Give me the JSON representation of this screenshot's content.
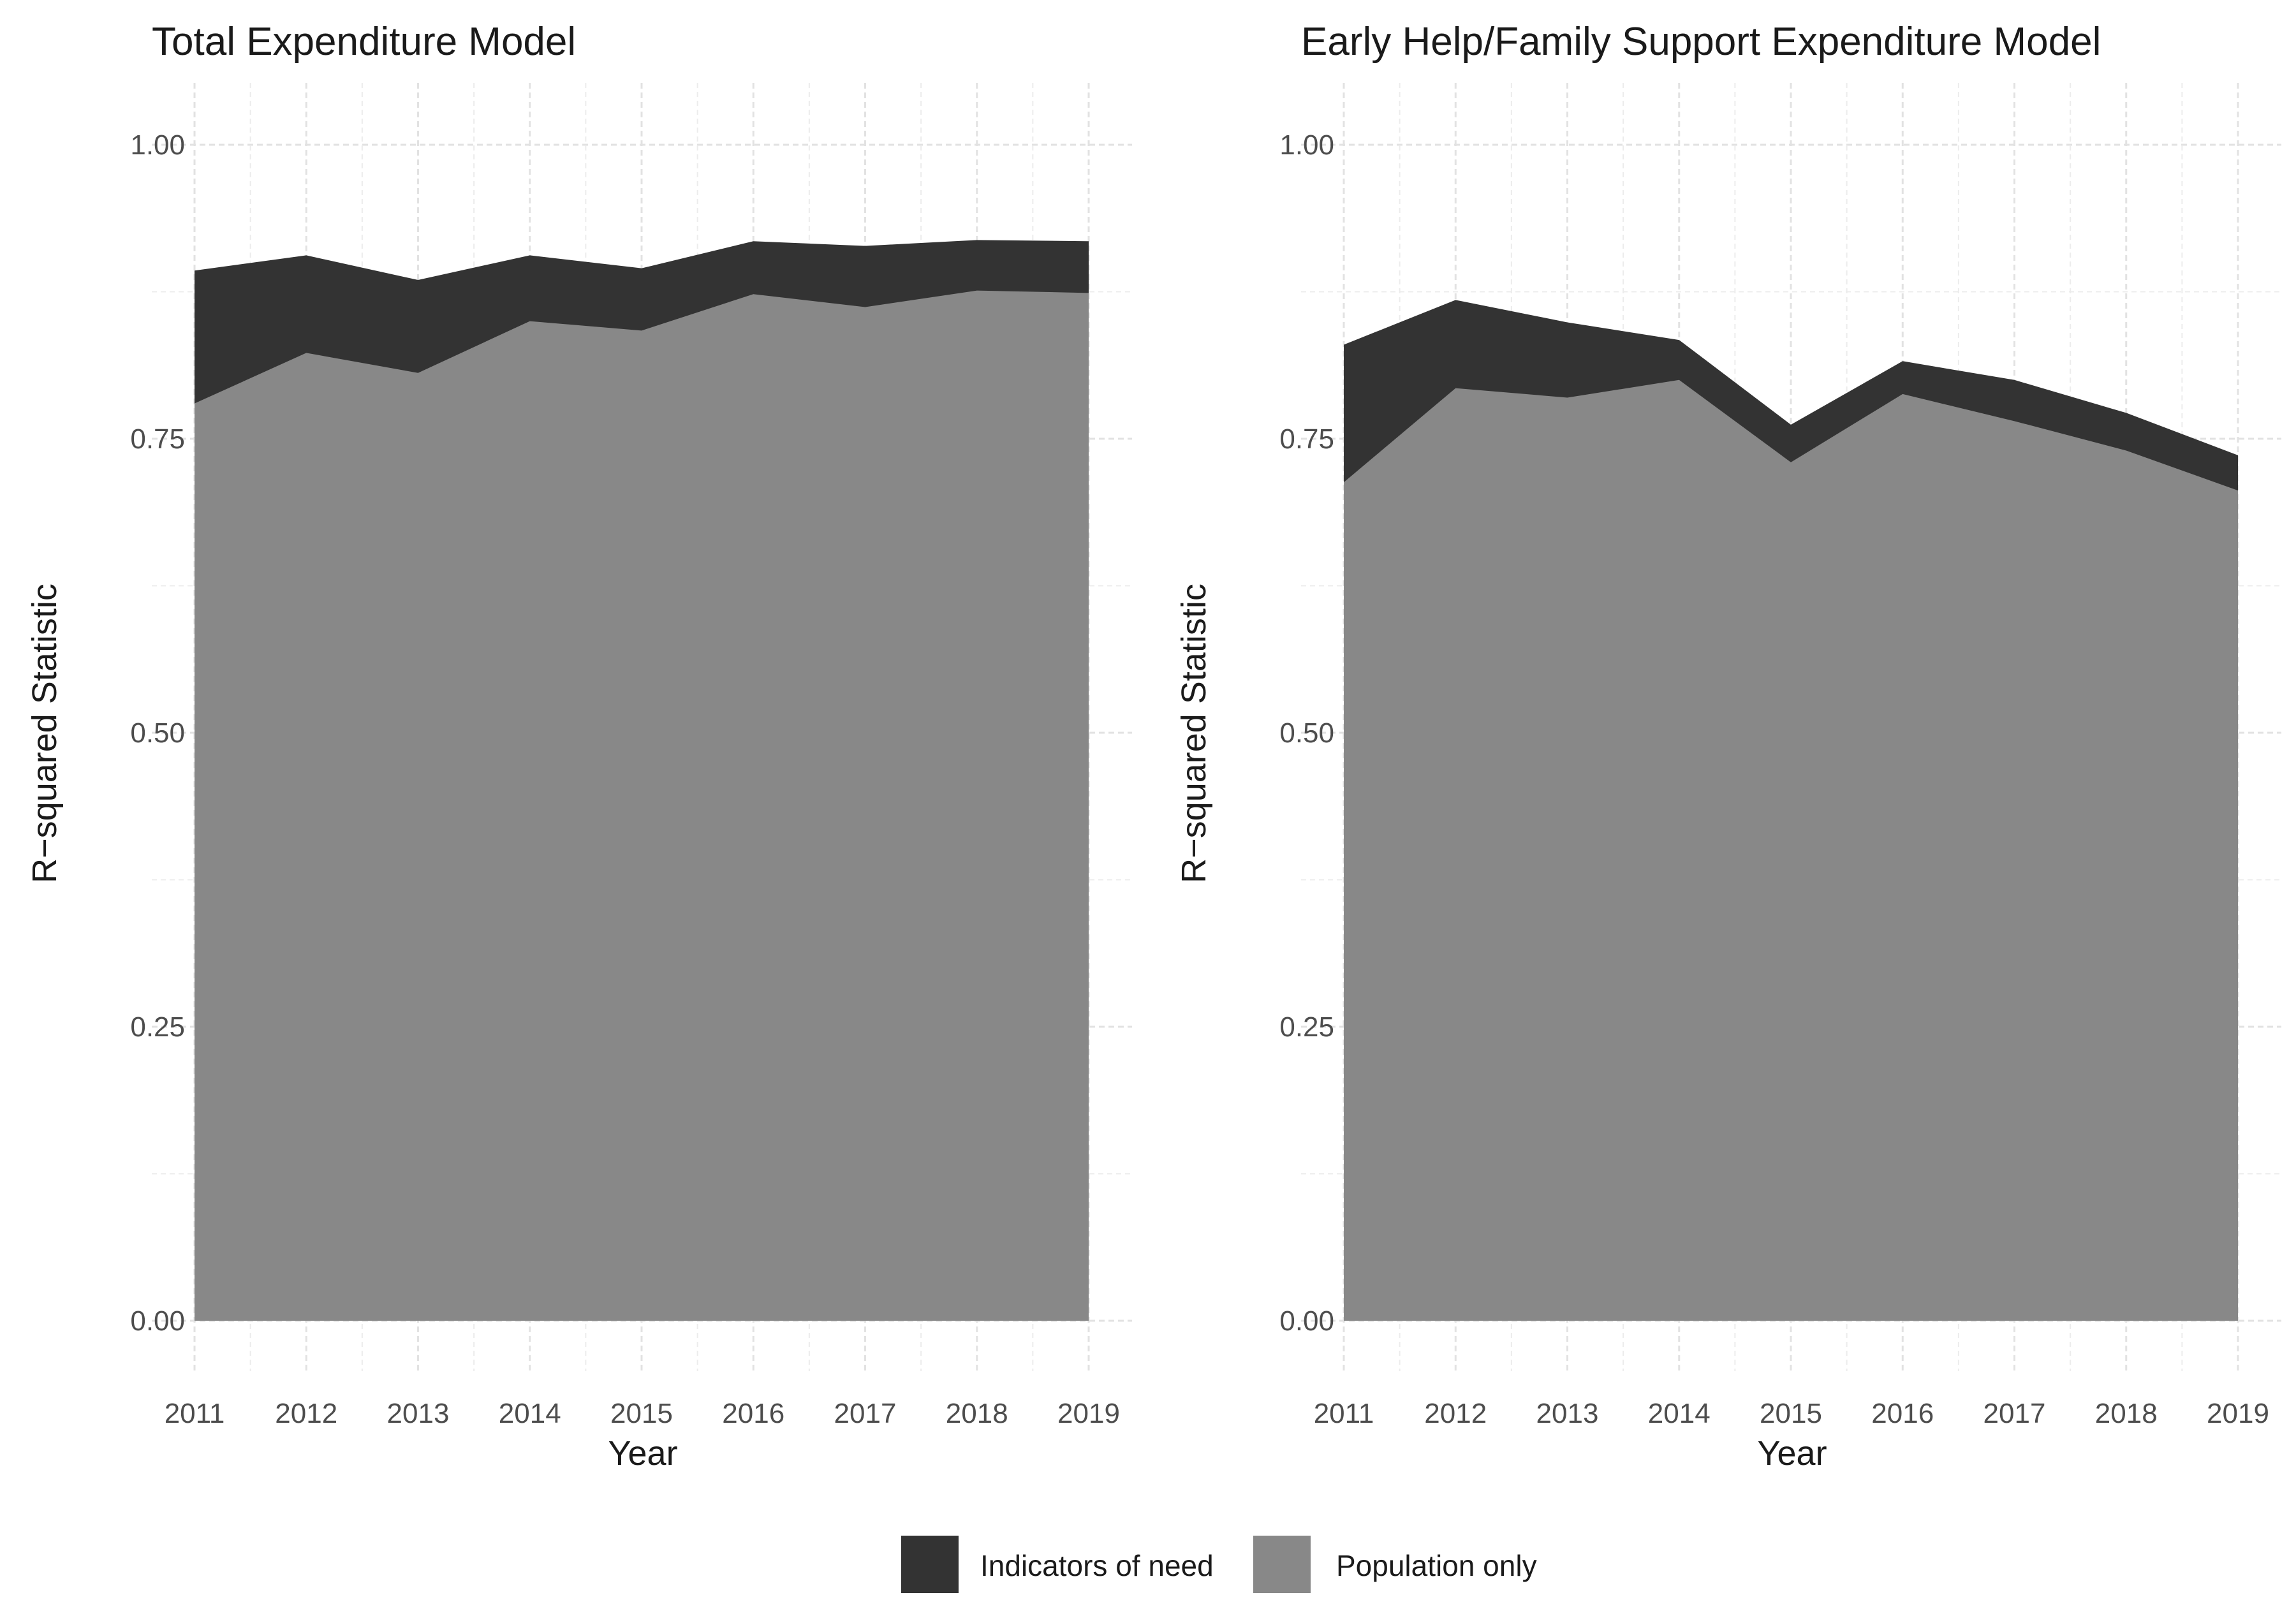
{
  "chart_data": [
    {
      "type": "area",
      "title": "Total Expenditure Model",
      "xlabel": "Year",
      "ylabel": "R−squared Statistic",
      "x": [
        2011,
        2012,
        2013,
        2014,
        2015,
        2016,
        2017,
        2018,
        2019
      ],
      "xticks": [
        "2011",
        "2012",
        "2013",
        "2014",
        "2015",
        "2016",
        "2017",
        "2018",
        "2019"
      ],
      "ylim": [
        0,
        1.0
      ],
      "yticks": [
        "0.00",
        "0.25",
        "0.50",
        "0.75",
        "1.00"
      ],
      "ytick_values": [
        0,
        0.25,
        0.5,
        0.75,
        1.0
      ],
      "grid": true,
      "series": [
        {
          "name": "Population only",
          "values": [
            0.78,
            0.823,
            0.806,
            0.85,
            0.842,
            0.873,
            0.862,
            0.876,
            0.874
          ]
        },
        {
          "name": "Indicators of need",
          "values": [
            0.893,
            0.906,
            0.885,
            0.906,
            0.895,
            0.918,
            0.914,
            0.919,
            0.918
          ]
        }
      ]
    },
    {
      "type": "area",
      "title": "Early Help/Family Support Expenditure Model",
      "xlabel": "Year",
      "ylabel": "R−squared Statistic",
      "x": [
        2011,
        2012,
        2013,
        2014,
        2015,
        2016,
        2017,
        2018,
        2019
      ],
      "xticks": [
        "2011",
        "2012",
        "2013",
        "2014",
        "2015",
        "2016",
        "2017",
        "2018",
        "2019"
      ],
      "ylim": [
        0,
        1.0
      ],
      "yticks": [
        "0.00",
        "0.25",
        "0.50",
        "0.75",
        "1.00"
      ],
      "ytick_values": [
        0,
        0.25,
        0.5,
        0.75,
        1.0
      ],
      "grid": true,
      "series": [
        {
          "name": "Population only",
          "values": [
            0.713,
            0.793,
            0.785,
            0.8,
            0.73,
            0.788,
            0.765,
            0.74,
            0.706
          ]
        },
        {
          "name": "Indicators of need",
          "values": [
            0.83,
            0.868,
            0.849,
            0.834,
            0.762,
            0.816,
            0.8,
            0.772,
            0.736
          ]
        }
      ]
    }
  ],
  "legend": {
    "position": "bottom",
    "items": [
      {
        "label": "Indicators of need",
        "color": "#333333"
      },
      {
        "label": "Population only",
        "color": "#888888"
      }
    ]
  }
}
